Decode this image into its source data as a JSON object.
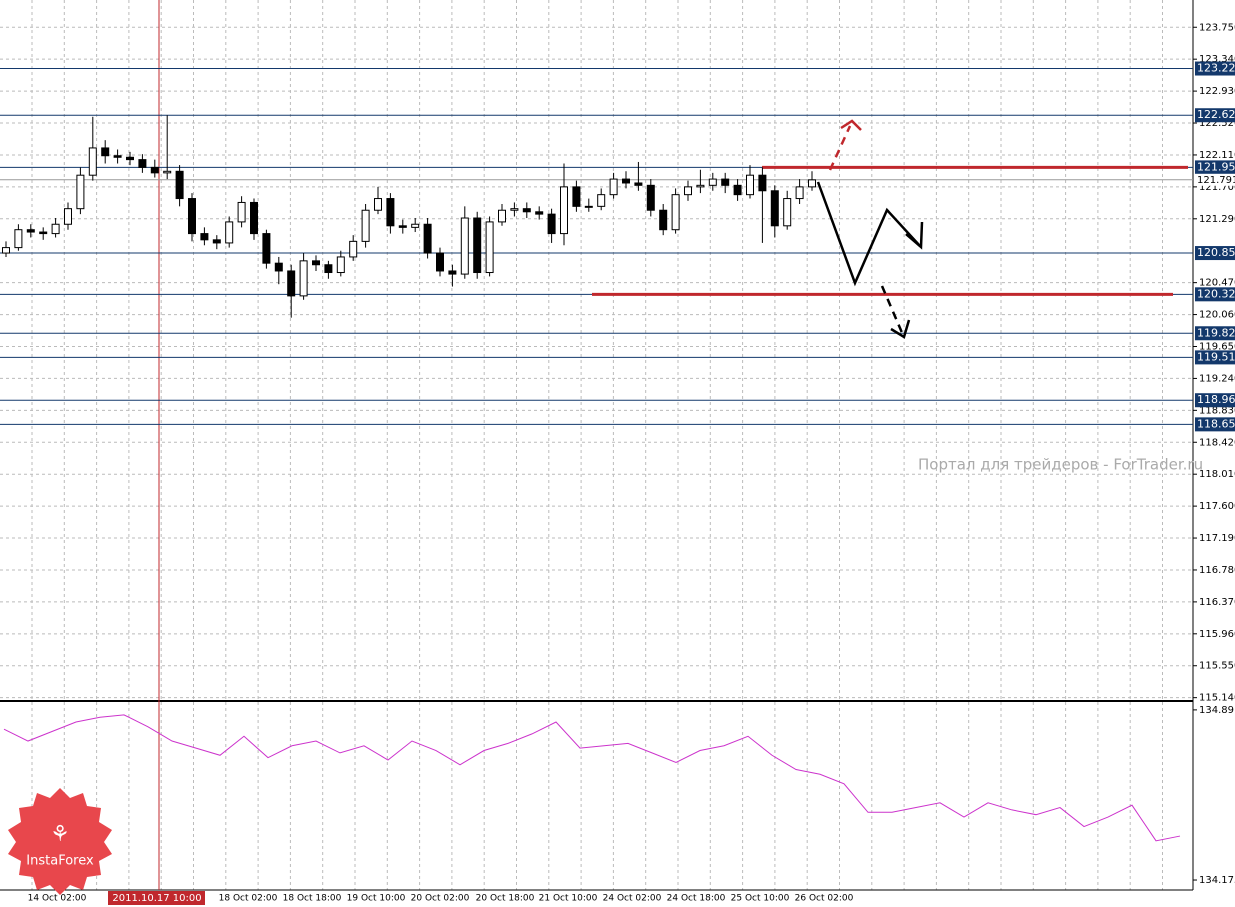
{
  "chart_data": [
    {
      "type": "candlestick",
      "ylim": [
        115.11,
        124.1
      ],
      "yticks": [
        {
          "value": 123.75,
          "label": "123.750"
        },
        {
          "value": 123.34,
          "label": "123.340"
        },
        {
          "value": 122.93,
          "label": "122.930"
        },
        {
          "value": 122.52,
          "label": "122.520"
        },
        {
          "value": 122.11,
          "label": "122.110"
        },
        {
          "value": 121.7,
          "label": "121.700"
        },
        {
          "value": 121.29,
          "label": "121.290"
        },
        {
          "value": 120.47,
          "label": "120.470"
        },
        {
          "value": 120.06,
          "label": "120.060"
        },
        {
          "value": 119.65,
          "label": "119.650"
        },
        {
          "value": 119.24,
          "label": "119.240"
        },
        {
          "value": 118.83,
          "label": "118.830"
        },
        {
          "value": 118.42,
          "label": "118.420"
        },
        {
          "value": 118.01,
          "label": "118.010"
        },
        {
          "value": 117.6,
          "label": "117.600"
        },
        {
          "value": 117.19,
          "label": "117.190"
        },
        {
          "value": 116.78,
          "label": "116.780"
        },
        {
          "value": 116.37,
          "label": "116.370"
        },
        {
          "value": 115.96,
          "label": "115.960"
        },
        {
          "value": 115.55,
          "label": "115.550"
        },
        {
          "value": 115.14,
          "label": "115.140"
        }
      ],
      "grid": true,
      "levels": [
        123.22,
        122.62,
        121.95,
        120.85,
        120.32,
        119.82,
        119.51,
        118.96,
        118.65
      ],
      "level_color": "#13386b",
      "key_levels": [
        121.95,
        120.32
      ],
      "key_level_color": "#c0282d",
      "current_price": 121.791,
      "open": [
        120.85,
        120.92,
        121.15,
        121.12,
        121.1,
        121.22,
        121.42,
        121.85,
        122.2,
        122.1,
        122.08,
        122.05,
        121.95,
        121.88,
        121.9,
        121.55,
        121.1,
        121.02,
        120.98,
        121.25,
        121.5,
        121.1,
        120.72,
        120.62,
        120.3,
        120.75,
        120.7,
        120.6,
        120.8,
        121.0,
        121.4,
        121.55,
        121.2,
        121.18,
        121.22,
        120.85,
        120.62,
        120.58,
        121.3,
        120.6,
        121.25,
        121.4,
        121.42,
        121.38,
        121.35,
        121.1,
        121.7,
        121.45,
        121.45,
        121.6,
        121.8,
        121.75,
        121.72,
        121.4,
        121.15,
        121.6,
        121.7,
        121.72,
        121.8,
        121.72,
        121.6,
        121.85,
        121.65,
        121.2,
        121.55,
        121.7
      ],
      "high": [
        121.0,
        121.22,
        121.22,
        121.18,
        121.3,
        121.5,
        121.95,
        122.6,
        122.3,
        122.18,
        122.15,
        122.12,
        122.05,
        122.62,
        121.98,
        121.62,
        121.18,
        121.08,
        121.32,
        121.58,
        121.55,
        121.15,
        120.8,
        120.7,
        120.85,
        120.82,
        120.75,
        120.88,
        121.08,
        121.48,
        121.7,
        121.62,
        121.28,
        121.3,
        121.3,
        120.92,
        120.7,
        121.45,
        121.38,
        121.32,
        121.48,
        121.5,
        121.5,
        121.45,
        121.42,
        122.0,
        121.78,
        121.55,
        121.68,
        121.88,
        121.9,
        122.02,
        121.8,
        121.48,
        121.68,
        121.78,
        121.92,
        121.88,
        121.88,
        121.8,
        121.98,
        121.95,
        121.72,
        121.65,
        121.8,
        121.9
      ],
      "low": [
        120.8,
        120.88,
        121.05,
        121.02,
        121.05,
        121.15,
        121.35,
        121.78,
        122.0,
        122.0,
        121.98,
        121.88,
        121.82,
        121.8,
        121.45,
        121.0,
        120.95,
        120.9,
        120.92,
        121.18,
        121.02,
        120.65,
        120.45,
        120.02,
        120.25,
        120.62,
        120.52,
        120.55,
        120.75,
        120.92,
        121.35,
        121.1,
        121.1,
        121.12,
        120.78,
        120.55,
        120.42,
        120.52,
        120.52,
        120.55,
        121.2,
        121.32,
        121.3,
        121.28,
        120.98,
        120.95,
        121.38,
        121.38,
        121.4,
        121.55,
        121.68,
        121.65,
        121.32,
        121.08,
        121.1,
        121.52,
        121.62,
        121.65,
        121.62,
        121.52,
        121.55,
        120.98,
        121.05,
        121.15,
        121.48,
        121.65
      ],
      "close": [
        120.92,
        121.15,
        121.12,
        121.1,
        121.22,
        121.42,
        121.85,
        122.2,
        122.1,
        122.08,
        122.05,
        121.95,
        121.88,
        121.9,
        121.55,
        121.1,
        121.02,
        120.98,
        121.25,
        121.5,
        121.1,
        120.72,
        120.62,
        120.3,
        120.75,
        120.7,
        120.6,
        120.8,
        121.0,
        121.4,
        121.55,
        121.2,
        121.18,
        121.22,
        120.85,
        120.62,
        120.58,
        121.3,
        120.6,
        121.25,
        121.4,
        121.42,
        121.38,
        121.35,
        121.1,
        121.7,
        121.45,
        121.45,
        121.6,
        121.8,
        121.75,
        121.72,
        121.4,
        121.15,
        121.6,
        121.7,
        121.72,
        121.8,
        121.72,
        121.6,
        121.85,
        121.65,
        121.2,
        121.55,
        121.7,
        121.79
      ]
    },
    {
      "type": "line",
      "ylim": [
        134.133,
        134.92
      ],
      "yticks": [
        134.891,
        134.175
      ],
      "color": "#cc33cc",
      "values": [
        134.81,
        134.76,
        134.8,
        134.84,
        134.86,
        134.87,
        134.82,
        134.76,
        134.73,
        134.7,
        134.78,
        134.69,
        134.74,
        134.76,
        134.71,
        134.74,
        134.68,
        134.76,
        134.72,
        134.66,
        134.72,
        134.75,
        134.79,
        134.84,
        134.73,
        134.74,
        134.75,
        134.71,
        134.67,
        134.72,
        134.74,
        134.78,
        134.7,
        134.64,
        134.62,
        134.58,
        134.46,
        134.46,
        134.48,
        134.5,
        134.44,
        134.5,
        134.47,
        134.45,
        134.48,
        134.4,
        134.44,
        134.49,
        134.34,
        134.36
      ]
    }
  ],
  "time_axis": {
    "labels": [
      "14 Oct 02:00",
      "18 Oct 02:00",
      "18 Oct 18:00",
      "19 Oct 10:00",
      "20 Oct 02:00",
      "20 Oct 18:00",
      "21 Oct 10:00",
      "24 Oct 02:00",
      "24 Oct 18:00",
      "25 Oct 10:00",
      "26 Oct 02:00"
    ],
    "cursor_label": "2011.10.17 10:00"
  },
  "watermark": "Портал для трейдеров - ForTrader.ru",
  "logo": "InstaForex"
}
